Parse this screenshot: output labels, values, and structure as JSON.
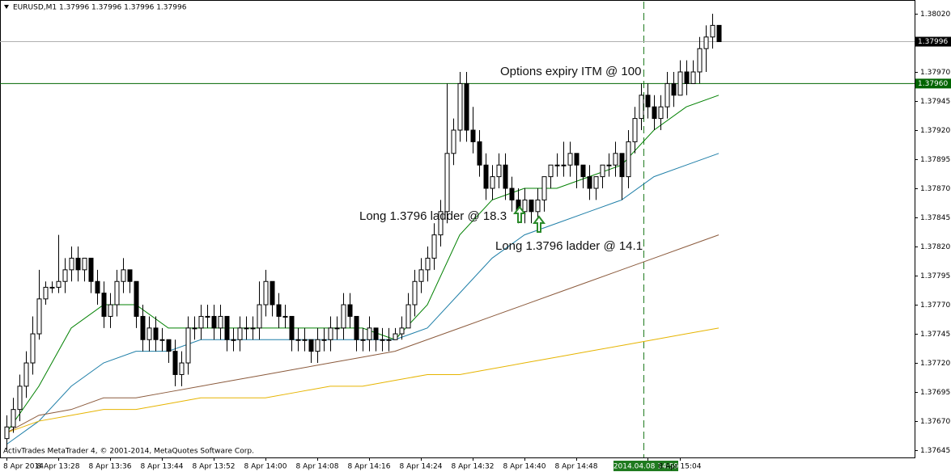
{
  "chart_data": {
    "type": "candlestick",
    "title": "EURUSD,M1  1.37996 1.37996 1.37996 1.37996",
    "footer": "ActivTrades MetaTrader 4, © 2001-2014, MetaQuotes Software Corp.",
    "categories": [
      "8 Apr 2014",
      null,
      null,
      null,
      null,
      null,
      null,
      null,
      "8 Apr 13:28",
      null,
      null,
      null,
      null,
      null,
      null,
      null,
      "8 Apr 13:36",
      null,
      null,
      null,
      null,
      null,
      null,
      null,
      "8 Apr 13:44",
      null,
      null,
      null,
      null,
      null,
      null,
      null,
      "8 Apr 13:52",
      null,
      null,
      null,
      null,
      null,
      null,
      null,
      "8 Apr 14:00",
      null,
      null,
      null,
      null,
      null,
      null,
      null,
      "8 Apr 14:08",
      null,
      null,
      null,
      null,
      null,
      null,
      null,
      "8 Apr 14:16",
      null,
      null,
      null,
      null,
      null,
      null,
      null,
      "8 Apr 14:24",
      null,
      null,
      null,
      null,
      null,
      null,
      null,
      "8 Apr 14:32",
      null,
      null,
      null,
      null,
      null,
      null,
      null,
      "8 Apr 14:40",
      null,
      null,
      null,
      null,
      null,
      null,
      null,
      "8 Apr 14:48",
      null,
      null,
      null,
      null,
      null,
      null,
      null,
      null,
      null,
      null,
      "2014.04.08 14:59",
      null,
      null,
      null,
      null,
      "8 Apr 15:04",
      null,
      null,
      null,
      null,
      null,
      null
    ],
    "highlight_index": 99,
    "candles": [
      [
        1.37655,
        1.37675,
        1.37645,
        1.37665
      ],
      [
        1.37665,
        1.3769,
        1.3766,
        1.3768
      ],
      [
        1.3768,
        1.3771,
        1.3767,
        1.377
      ],
      [
        1.377,
        1.3773,
        1.3769,
        1.3772
      ],
      [
        1.3772,
        1.3776,
        1.3771,
        1.37745
      ],
      [
        1.37745,
        1.378,
        1.3774,
        1.37775
      ],
      [
        1.37775,
        1.3779,
        1.3777,
        1.37785
      ],
      [
        1.37785,
        1.3779,
        1.3778,
        1.37785
      ],
      [
        1.37785,
        1.3783,
        1.3778,
        1.3779
      ],
      [
        1.3779,
        1.3781,
        1.3778,
        1.378
      ],
      [
        1.378,
        1.3782,
        1.3779,
        1.3781
      ],
      [
        1.3781,
        1.3782,
        1.3779,
        1.378
      ],
      [
        1.378,
        1.3781,
        1.3779,
        1.3781
      ],
      [
        1.3781,
        1.3781,
        1.3778,
        1.3779
      ],
      [
        1.3779,
        1.378,
        1.3777,
        1.3778
      ],
      [
        1.3778,
        1.3779,
        1.3775,
        1.3776
      ],
      [
        1.3776,
        1.3778,
        1.3775,
        1.3777
      ],
      [
        1.3777,
        1.378,
        1.3776,
        1.3779
      ],
      [
        1.3779,
        1.3781,
        1.3778,
        1.378
      ],
      [
        1.378,
        1.378,
        1.3778,
        1.3779
      ],
      [
        1.3779,
        1.3779,
        1.3775,
        1.3776
      ],
      [
        1.3776,
        1.3777,
        1.3773,
        1.3774
      ],
      [
        1.3774,
        1.3776,
        1.3773,
        1.3775
      ],
      [
        1.3775,
        1.3776,
        1.3773,
        1.3774
      ],
      [
        1.3774,
        1.3775,
        1.3773,
        1.3774
      ],
      [
        1.3774,
        1.3774,
        1.3772,
        1.3773
      ],
      [
        1.3773,
        1.3774,
        1.377,
        1.3771
      ],
      [
        1.3771,
        1.3773,
        1.377,
        1.3772
      ],
      [
        1.3772,
        1.3776,
        1.3771,
        1.3775
      ],
      [
        1.3775,
        1.3776,
        1.3774,
        1.3775
      ],
      [
        1.3775,
        1.3777,
        1.3774,
        1.3776
      ],
      [
        1.3776,
        1.3777,
        1.3775,
        1.3776
      ],
      [
        1.3776,
        1.3777,
        1.3774,
        1.3775
      ],
      [
        1.3775,
        1.3777,
        1.3774,
        1.3776
      ],
      [
        1.3776,
        1.3776,
        1.3773,
        1.3774
      ],
      [
        1.3774,
        1.3775,
        1.3773,
        1.3774
      ],
      [
        1.3774,
        1.3776,
        1.3773,
        1.3775
      ],
      [
        1.3775,
        1.3776,
        1.3774,
        1.3775
      ],
      [
        1.3775,
        1.3776,
        1.3774,
        1.3775
      ],
      [
        1.3775,
        1.3779,
        1.3774,
        1.3777
      ],
      [
        1.3777,
        1.378,
        1.3776,
        1.3779
      ],
      [
        1.3779,
        1.3779,
        1.3776,
        1.3777
      ],
      [
        1.3777,
        1.3778,
        1.3775,
        1.3776
      ],
      [
        1.3776,
        1.3777,
        1.3775,
        1.3776
      ],
      [
        1.3776,
        1.3776,
        1.3773,
        1.3774
      ],
      [
        1.3774,
        1.3775,
        1.3773,
        1.3774
      ],
      [
        1.3774,
        1.3775,
        1.3773,
        1.3774
      ],
      [
        1.3774,
        1.3774,
        1.3772,
        1.3773
      ],
      [
        1.3773,
        1.3775,
        1.3772,
        1.3774
      ],
      [
        1.3774,
        1.3775,
        1.3773,
        1.3774
      ],
      [
        1.3774,
        1.3776,
        1.3773,
        1.3775
      ],
      [
        1.3775,
        1.3776,
        1.3774,
        1.3775
      ],
      [
        1.3775,
        1.3778,
        1.3774,
        1.3777
      ],
      [
        1.3777,
        1.3778,
        1.3775,
        1.3776
      ],
      [
        1.3776,
        1.3776,
        1.3773,
        1.3774
      ],
      [
        1.3774,
        1.3775,
        1.3773,
        1.3774
      ],
      [
        1.3774,
        1.3776,
        1.3773,
        1.3775
      ],
      [
        1.3775,
        1.3775,
        1.3773,
        1.3774
      ],
      [
        1.3774,
        1.3775,
        1.3773,
        1.3774
      ],
      [
        1.3774,
        1.3775,
        1.3773,
        1.3774
      ],
      [
        1.3774,
        1.3775,
        1.3774,
        1.37745
      ],
      [
        1.37745,
        1.3776,
        1.3774,
        1.3775
      ],
      [
        1.3775,
        1.3778,
        1.3775,
        1.3777
      ],
      [
        1.3777,
        1.378,
        1.3776,
        1.3779
      ],
      [
        1.3779,
        1.3781,
        1.3778,
        1.378
      ],
      [
        1.378,
        1.3782,
        1.3779,
        1.3781
      ],
      [
        1.3781,
        1.3784,
        1.378,
        1.3783
      ],
      [
        1.3783,
        1.3786,
        1.3782,
        1.3785
      ],
      [
        1.3785,
        1.3796,
        1.3784,
        1.379
      ],
      [
        1.379,
        1.3793,
        1.3789,
        1.3792
      ],
      [
        1.3792,
        1.3797,
        1.3791,
        1.3796
      ],
      [
        1.3796,
        1.3797,
        1.3791,
        1.3792
      ],
      [
        1.3792,
        1.3794,
        1.379,
        1.3791
      ],
      [
        1.3791,
        1.3792,
        1.3788,
        1.3789
      ],
      [
        1.3789,
        1.379,
        1.3786,
        1.3787
      ],
      [
        1.3787,
        1.3789,
        1.3786,
        1.3788
      ],
      [
        1.3788,
        1.379,
        1.3787,
        1.3789
      ],
      [
        1.3789,
        1.379,
        1.3786,
        1.3787
      ],
      [
        1.3787,
        1.3788,
        1.3785,
        1.3786
      ],
      [
        1.3786,
        1.3787,
        1.3784,
        1.3785
      ],
      [
        1.3785,
        1.3787,
        1.3784,
        1.3786
      ],
      [
        1.3786,
        1.3786,
        1.3784,
        1.3785
      ],
      [
        1.3785,
        1.3787,
        1.3784,
        1.3786
      ],
      [
        1.3786,
        1.3788,
        1.3785,
        1.3788
      ],
      [
        1.3788,
        1.3789,
        1.3787,
        1.3789
      ],
      [
        1.3789,
        1.379,
        1.3788,
        1.3789
      ],
      [
        1.3789,
        1.3791,
        1.3788,
        1.3789
      ],
      [
        1.3789,
        1.3791,
        1.3788,
        1.379
      ],
      [
        1.379,
        1.379,
        1.3787,
        1.3789
      ],
      [
        1.3789,
        1.3789,
        1.3787,
        1.3788
      ],
      [
        1.3788,
        1.3789,
        1.3786,
        1.3787
      ],
      [
        1.3787,
        1.3788,
        1.3786,
        1.3788
      ],
      [
        1.3788,
        1.3789,
        1.3787,
        1.3789
      ],
      [
        1.3789,
        1.379,
        1.3788,
        1.3789
      ],
      [
        1.3789,
        1.3791,
        1.3788,
        1.379
      ],
      [
        1.379,
        1.379,
        1.3786,
        1.3788
      ],
      [
        1.3788,
        1.3792,
        1.3787,
        1.3791
      ],
      [
        1.3791,
        1.3794,
        1.379,
        1.3793
      ],
      [
        1.3793,
        1.3796,
        1.3792,
        1.3795
      ],
      [
        1.3795,
        1.3796,
        1.3793,
        1.3794
      ],
      [
        1.3794,
        1.3795,
        1.3792,
        1.3793
      ],
      [
        1.3793,
        1.3795,
        1.3792,
        1.3794
      ],
      [
        1.3794,
        1.3797,
        1.3793,
        1.3796
      ],
      [
        1.3796,
        1.3797,
        1.3794,
        1.3795
      ],
      [
        1.3795,
        1.3798,
        1.3795,
        1.3797
      ],
      [
        1.3797,
        1.3798,
        1.3795,
        1.3796
      ],
      [
        1.3796,
        1.3798,
        1.3796,
        1.3797
      ],
      [
        1.3797,
        1.38,
        1.3796,
        1.3799
      ],
      [
        1.3799,
        1.3801,
        1.3797,
        1.38
      ],
      [
        1.38,
        1.3802,
        1.3799,
        1.3801
      ],
      [
        1.3801,
        1.3801,
        1.37996,
        1.37996
      ]
    ],
    "series": [
      {
        "color": "#008000",
        "x": [
          0,
          5,
          10,
          15,
          20,
          25,
          30,
          35,
          40,
          45,
          50,
          55,
          60,
          65,
          70,
          75,
          80,
          85,
          90,
          95,
          100,
          105,
          110
        ],
        "values": [
          1.3766,
          1.377,
          1.3775,
          1.3777,
          1.3777,
          1.3775,
          1.3775,
          1.3775,
          1.3775,
          1.3775,
          1.3775,
          1.3775,
          1.3774,
          1.3777,
          1.3783,
          1.3786,
          1.3787,
          1.3787,
          1.3788,
          1.3789,
          1.3792,
          1.3794,
          1.3795
        ]
      },
      {
        "color": "#1f7fa8",
        "x": [
          0,
          5,
          10,
          15,
          20,
          25,
          30,
          35,
          40,
          45,
          50,
          55,
          60,
          65,
          70,
          75,
          80,
          85,
          90,
          95,
          100,
          105,
          110
        ],
        "values": [
          1.3765,
          1.3767,
          1.377,
          1.3772,
          1.3773,
          1.3773,
          1.3774,
          1.3774,
          1.3774,
          1.3774,
          1.3774,
          1.3774,
          1.3774,
          1.3775,
          1.3778,
          1.3781,
          1.3783,
          1.3784,
          1.3785,
          1.3786,
          1.3788,
          1.3789,
          1.379
        ]
      },
      {
        "color": "#8b5a3c",
        "x": [
          0,
          5,
          10,
          15,
          20,
          25,
          30,
          35,
          40,
          45,
          50,
          55,
          60,
          65,
          70,
          75,
          80,
          85,
          90,
          95,
          100,
          105,
          110
        ],
        "values": [
          1.3766,
          1.37675,
          1.3768,
          1.3769,
          1.3769,
          1.37695,
          1.377,
          1.37705,
          1.3771,
          1.37715,
          1.3772,
          1.37725,
          1.3773,
          1.3774,
          1.3775,
          1.3776,
          1.3777,
          1.3778,
          1.3779,
          1.378,
          1.3781,
          1.3782,
          1.3783
        ]
      },
      {
        "color": "#e6b400",
        "x": [
          0,
          5,
          10,
          15,
          20,
          25,
          30,
          35,
          40,
          45,
          50,
          55,
          60,
          65,
          70,
          75,
          80,
          85,
          90,
          95,
          100,
          105,
          110
        ],
        "values": [
          1.3766,
          1.3767,
          1.37675,
          1.3768,
          1.3768,
          1.37685,
          1.3769,
          1.3769,
          1.3769,
          1.37695,
          1.377,
          1.377,
          1.37705,
          1.3771,
          1.3771,
          1.37715,
          1.3772,
          1.37725,
          1.3773,
          1.37735,
          1.3774,
          1.37745,
          1.3775
        ]
      }
    ],
    "level": {
      "value": 1.3796,
      "label": "1.37960",
      "color": "#006400"
    },
    "bid": {
      "value": 1.37996,
      "label": "1.37996"
    },
    "ylim": [
      1.376388,
      1.380304
    ],
    "yticks": [
      {
        "value": 1.3802,
        "label": "1.38020"
      },
      1.37995,
      {
        "value": 1.3797,
        "label": "1.37970"
      },
      1.37945,
      {
        "value": 1.3792,
        "label": "1.37920"
      },
      1.37895,
      {
        "value": 1.3787,
        "label": "1.37870"
      },
      1.37845,
      {
        "value": 1.3782,
        "label": "1.37820"
      },
      1.37795,
      {
        "value": 1.3777,
        "label": "1.37770"
      },
      1.37745,
      {
        "value": 1.3772,
        "label": "1.37720"
      },
      1.37695,
      {
        "value": 1.3767,
        "label": "1.37670"
      },
      1.37645
    ],
    "annotations": [
      "Options expiry ITM @ 100",
      "Long 1.3796 ladder @ 18.3",
      "Long 1.3796 ladder @ 14.1"
    ]
  }
}
